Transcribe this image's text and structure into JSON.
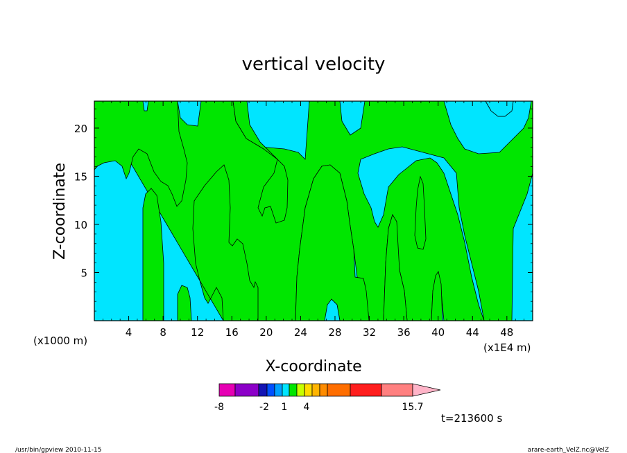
{
  "chart_data": {
    "type": "contour",
    "title": "vertical velocity",
    "xlabel": "X-coordinate",
    "ylabel": "Z-coordinate",
    "x_unit_label": "(x1000 m)",
    "x_scale_label": "(x1E4 m)",
    "xlim": [
      0,
      51
    ],
    "ylim": [
      0,
      22.8
    ],
    "xticks": [
      4,
      8,
      12,
      16,
      20,
      24,
      28,
      32,
      36,
      40,
      44,
      48
    ],
    "yticks": [
      5,
      10,
      15,
      20
    ],
    "time_label": "t=213600 s",
    "field_colors": {
      "cyan_region": "#00e5ff",
      "green_region": "#00e600"
    },
    "colorbar": {
      "colors": [
        "#e600b4",
        "#8c00c8",
        "#1414b4",
        "#0050ff",
        "#00a0ff",
        "#00e5ff",
        "#00e600",
        "#c8ff00",
        "#ffdc00",
        "#ffb400",
        "#ff8c00",
        "#ff6e00",
        "#ff1e1e",
        "#ff8080",
        "#ffb4c8"
      ],
      "labels": [
        "-8",
        "-2",
        "1",
        "4",
        "15.7"
      ]
    }
  },
  "footer": {
    "left": "/usr/bin/gpview   2010-11-15",
    "right": "arare-earth_VelZ.nc@VelZ"
  }
}
